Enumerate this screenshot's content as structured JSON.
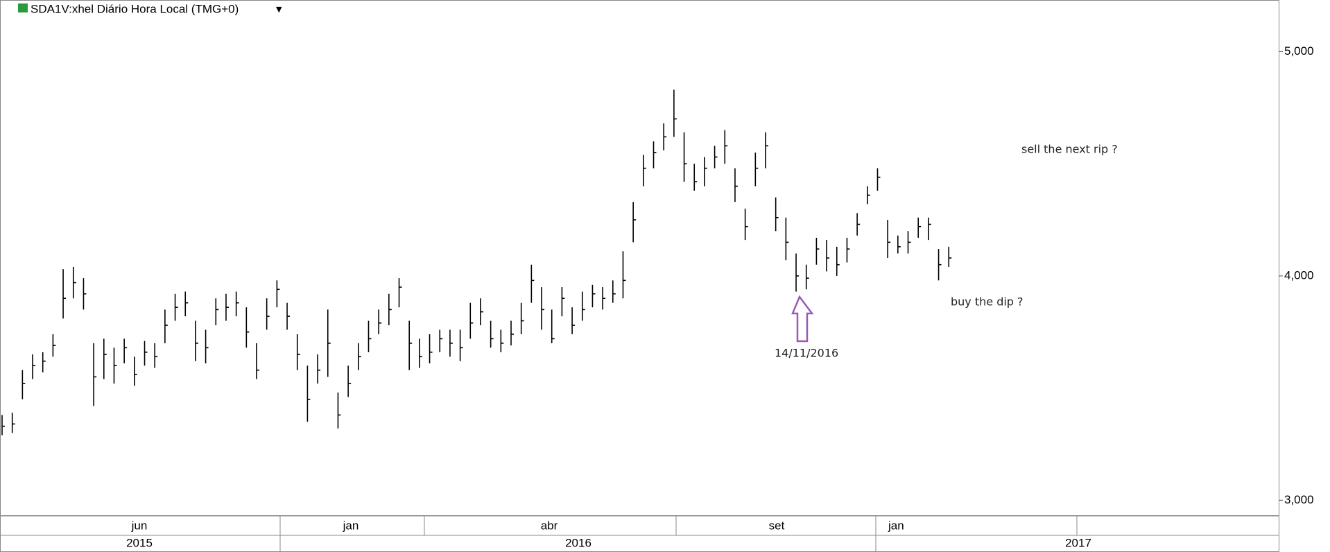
{
  "chart_data": {
    "type": "ohlc",
    "title": "SDA1V:xhel Diário Hora Local (TMG+0)",
    "series": [
      {
        "color": "#000000",
        "close": [
          3330,
          3340,
          3520,
          3600,
          3620,
          3690,
          3900,
          3970,
          3920,
          3550,
          3650,
          3600,
          3680,
          3560,
          3660,
          3640,
          3780,
          3860,
          3880,
          3700,
          3680,
          3850,
          3860,
          3880,
          3750,
          3580,
          3820,
          3940,
          3820,
          3650,
          3450,
          3580,
          3700,
          3380,
          3520,
          3640,
          3720,
          3790,
          3850,
          3950,
          3700,
          3640,
          3660,
          3720,
          3700,
          3680,
          3790,
          3840,
          3720,
          3700,
          3740,
          3800,
          3980,
          3850,
          3720,
          3900,
          3780,
          3850,
          3920,
          3900,
          3920,
          3980,
          4250,
          4480,
          4550,
          4620,
          4700,
          4500,
          4420,
          4480,
          4530,
          4580,
          4400,
          4220,
          4480,
          4580,
          4260,
          4150,
          4000,
          3990,
          4120,
          4080,
          4050,
          4120,
          4230,
          4360,
          4440,
          4150,
          4130,
          4150,
          4220,
          4230,
          4050,
          4080
        ],
        "high": [
          3380,
          3390,
          3580,
          3650,
          3660,
          3740,
          4030,
          4040,
          3990,
          3700,
          3720,
          3680,
          3720,
          3640,
          3710,
          3700,
          3850,
          3920,
          3930,
          3800,
          3760,
          3900,
          3920,
          3930,
          3860,
          3700,
          3900,
          3980,
          3880,
          3740,
          3600,
          3650,
          3850,
          3480,
          3600,
          3700,
          3800,
          3850,
          3920,
          3990,
          3800,
          3720,
          3740,
          3760,
          3760,
          3760,
          3880,
          3900,
          3800,
          3760,
          3800,
          3880,
          4050,
          3950,
          3850,
          3950,
          3860,
          3930,
          3960,
          3950,
          3980,
          4110,
          4330,
          4540,
          4600,
          4680,
          4830,
          4640,
          4500,
          4530,
          4580,
          4650,
          4480,
          4300,
          4550,
          4640,
          4350,
          4260,
          4100,
          4050,
          4170,
          4160,
          4130,
          4170,
          4280,
          4400,
          4480,
          4250,
          4180,
          4200,
          4260,
          4260,
          4120,
          4130
        ],
        "low": [
          3290,
          3300,
          3450,
          3540,
          3570,
          3640,
          3810,
          3900,
          3850,
          3420,
          3540,
          3520,
          3610,
          3510,
          3600,
          3590,
          3700,
          3800,
          3820,
          3620,
          3610,
          3780,
          3800,
          3820,
          3680,
          3540,
          3760,
          3860,
          3760,
          3580,
          3350,
          3520,
          3550,
          3320,
          3460,
          3580,
          3660,
          3740,
          3780,
          3860,
          3580,
          3590,
          3610,
          3660,
          3640,
          3620,
          3720,
          3780,
          3680,
          3660,
          3690,
          3740,
          3880,
          3760,
          3700,
          3820,
          3740,
          3800,
          3860,
          3850,
          3880,
          3900,
          4150,
          4400,
          4480,
          4560,
          4620,
          4420,
          4380,
          4400,
          4480,
          4500,
          4330,
          4160,
          4400,
          4480,
          4200,
          4070,
          3930,
          3940,
          4050,
          4020,
          4000,
          4060,
          4180,
          4320,
          4380,
          4080,
          4100,
          4100,
          4170,
          4160,
          3980,
          4040
        ]
      }
    ],
    "ylim": [
      2930,
      5230
    ],
    "yticks": [
      {
        "value": 3000,
        "label": "3,000"
      },
      {
        "value": 4000,
        "label": "4,000"
      },
      {
        "value": 5000,
        "label": "5,000"
      }
    ],
    "x_axis": {
      "months": [
        "jun",
        "jan",
        "abr",
        "set",
        "jan"
      ],
      "years": [
        "2015",
        "2016",
        "2017"
      ]
    },
    "annotations": [
      "sell the next rip ?",
      "buy the dip ?",
      "14/11/2016"
    ]
  }
}
